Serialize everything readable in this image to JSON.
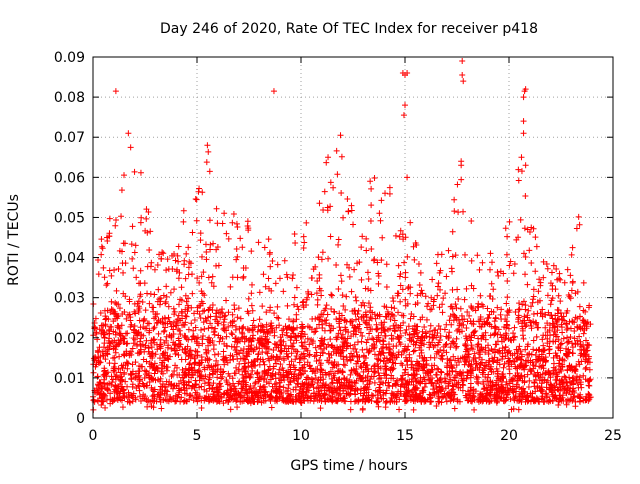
{
  "chart_data": {
    "type": "scatter",
    "title": "Day 246 of 2020, Rate Of TEC Index for receiver p418",
    "xlabel": "GPS time / hours",
    "ylabel": "ROTI / TECUs",
    "xlim": [
      0,
      25
    ],
    "ylim": [
      0,
      0.09
    ],
    "x_ticks": [
      0,
      5,
      10,
      15,
      20,
      25
    ],
    "x_tick_labels": [
      "0",
      "5",
      "10",
      "15",
      "20",
      "25"
    ],
    "y_ticks": [
      0,
      0.01,
      0.02,
      0.03,
      0.04,
      0.05,
      0.06,
      0.07,
      0.08,
      0.09
    ],
    "y_tick_labels": [
      "0",
      "0.01",
      "0.02",
      "0.03",
      "0.04",
      "0.05",
      "0.06",
      "0.07",
      "0.08",
      "0.09"
    ],
    "grid": true,
    "marker": "+",
    "series_color": "#ff0000",
    "data_x_range_hours": [
      0,
      23.95
    ],
    "envelope": [
      {
        "t": 0.0,
        "base_max": 0.022,
        "spike": 0.035
      },
      {
        "t": 0.5,
        "base_max": 0.024,
        "spike": 0.053
      },
      {
        "t": 1.0,
        "base_max": 0.026,
        "spike": 0.048
      },
      {
        "t": 1.5,
        "base_max": 0.028,
        "spike": 0.062
      },
      {
        "t": 1.8,
        "base_max": 0.03,
        "spike": 0.071
      },
      {
        "t": 2.5,
        "base_max": 0.027,
        "spike": 0.058
      },
      {
        "t": 3.0,
        "base_max": 0.025,
        "spike": 0.04
      },
      {
        "t": 4.0,
        "base_max": 0.026,
        "spike": 0.046
      },
      {
        "t": 4.5,
        "base_max": 0.027,
        "spike": 0.055
      },
      {
        "t": 5.2,
        "base_max": 0.029,
        "spike": 0.06
      },
      {
        "t": 5.5,
        "base_max": 0.03,
        "spike": 0.068
      },
      {
        "t": 6.0,
        "base_max": 0.027,
        "spike": 0.055
      },
      {
        "t": 7.0,
        "base_max": 0.023,
        "spike": 0.052
      },
      {
        "t": 8.0,
        "base_max": 0.022,
        "spike": 0.046
      },
      {
        "t": 9.0,
        "base_max": 0.022,
        "spike": 0.048
      },
      {
        "t": 10.0,
        "base_max": 0.023,
        "spike": 0.045
      },
      {
        "t": 11.0,
        "base_max": 0.026,
        "spike": 0.06
      },
      {
        "t": 11.3,
        "base_max": 0.028,
        "spike": 0.066
      },
      {
        "t": 11.8,
        "base_max": 0.027,
        "spike": 0.071
      },
      {
        "t": 12.5,
        "base_max": 0.024,
        "spike": 0.055
      },
      {
        "t": 13.3,
        "base_max": 0.027,
        "spike": 0.062
      },
      {
        "t": 14.0,
        "base_max": 0.028,
        "spike": 0.063
      },
      {
        "t": 15.0,
        "base_max": 0.026,
        "spike": 0.057
      },
      {
        "t": 16.0,
        "base_max": 0.021,
        "spike": 0.034
      },
      {
        "t": 17.0,
        "base_max": 0.023,
        "spike": 0.046
      },
      {
        "t": 17.7,
        "base_max": 0.028,
        "spike": 0.064
      },
      {
        "t": 18.5,
        "base_max": 0.025,
        "spike": 0.045
      },
      {
        "t": 19.5,
        "base_max": 0.022,
        "spike": 0.04
      },
      {
        "t": 20.5,
        "base_max": 0.026,
        "spike": 0.065
      },
      {
        "t": 21.5,
        "base_max": 0.025,
        "spike": 0.04
      },
      {
        "t": 22.5,
        "base_max": 0.024,
        "spike": 0.037
      },
      {
        "t": 23.5,
        "base_max": 0.025,
        "spike": 0.056
      },
      {
        "t": 23.95,
        "base_max": 0.022,
        "spike": 0.04
      }
    ],
    "notable_points": [
      {
        "x": 1.1,
        "y": 0.0815
      },
      {
        "x": 8.7,
        "y": 0.0815
      },
      {
        "x": 14.9,
        "y": 0.086
      },
      {
        "x": 15.0,
        "y": 0.0855
      },
      {
        "x": 15.1,
        "y": 0.086
      },
      {
        "x": 15.0,
        "y": 0.078
      },
      {
        "x": 14.95,
        "y": 0.0755
      },
      {
        "x": 17.75,
        "y": 0.089
      },
      {
        "x": 17.75,
        "y": 0.0855
      },
      {
        "x": 17.8,
        "y": 0.084
      },
      {
        "x": 20.7,
        "y": 0.08
      },
      {
        "x": 20.8,
        "y": 0.082
      },
      {
        "x": 20.75,
        "y": 0.0815
      },
      {
        "x": 20.6,
        "y": 0.065
      },
      {
        "x": 20.8,
        "y": 0.063
      },
      {
        "x": 20.7,
        "y": 0.074
      },
      {
        "x": 20.7,
        "y": 0.071
      },
      {
        "x": 17.7,
        "y": 0.064
      },
      {
        "x": 17.7,
        "y": 0.063
      },
      {
        "x": 1.7,
        "y": 0.071
      },
      {
        "x": 11.9,
        "y": 0.0705
      },
      {
        "x": 5.5,
        "y": 0.068
      },
      {
        "x": 11.3,
        "y": 0.065
      },
      {
        "x": 15.1,
        "y": 0.06
      },
      {
        "x": 20.9,
        "y": 0.047
      }
    ]
  }
}
